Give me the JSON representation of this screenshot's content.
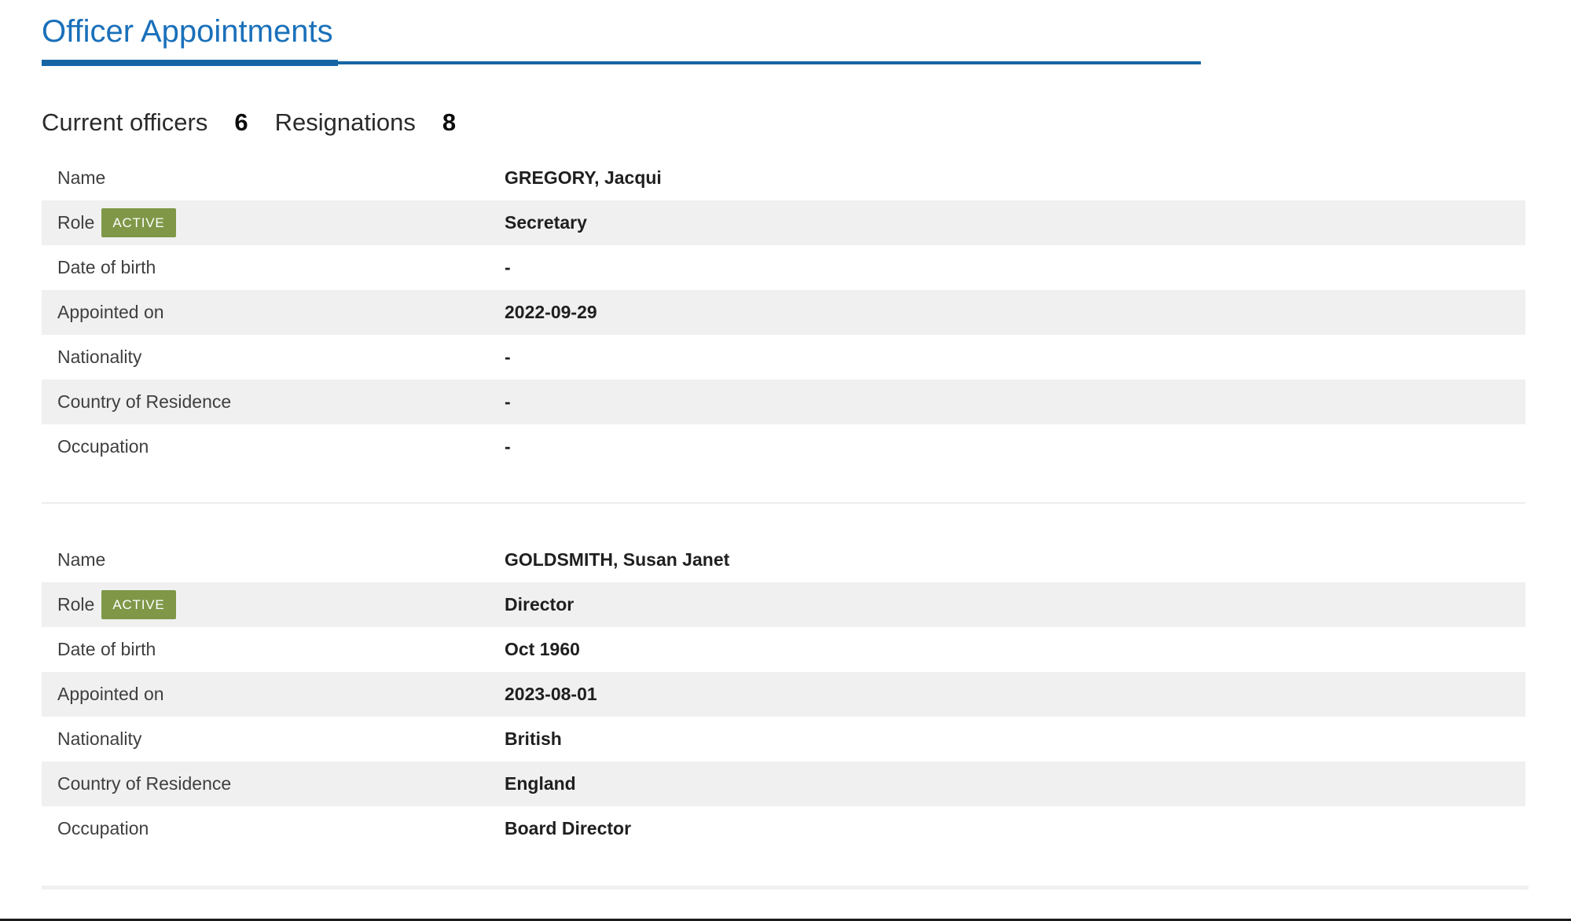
{
  "header": {
    "title": "Officer Appointments"
  },
  "summary": {
    "current_officers_label": "Current officers",
    "current_officers_count": "6",
    "resignations_label": "Resignations",
    "resignations_count": "8"
  },
  "officers": [
    {
      "rows": [
        {
          "label": "Name",
          "value": "GREGORY, Jacqui"
        },
        {
          "label": "Role",
          "badge": "ACTIVE",
          "value": "Secretary"
        },
        {
          "label": "Date of birth",
          "value": "-"
        },
        {
          "label": "Appointed on",
          "value": "2022-09-29"
        },
        {
          "label": "Nationality",
          "value": "-"
        },
        {
          "label": "Country of Residence",
          "value": "-"
        },
        {
          "label": "Occupation",
          "value": "-"
        }
      ]
    },
    {
      "rows": [
        {
          "label": "Name",
          "value": "GOLDSMITH, Susan Janet"
        },
        {
          "label": "Role",
          "badge": "ACTIVE",
          "value": "Director"
        },
        {
          "label": "Date of birth",
          "value": "Oct 1960"
        },
        {
          "label": "Appointed on",
          "value": "2023-08-01"
        },
        {
          "label": "Nationality",
          "value": "British"
        },
        {
          "label": "Country of Residence",
          "value": "England"
        },
        {
          "label": "Occupation",
          "value": "Board Director"
        }
      ]
    }
  ],
  "colors": {
    "accent-blue": "#1a70ba",
    "rule-blue": "#1565a5",
    "badge-green": "#7f9747",
    "row-stripe": "#f0f0f0",
    "label-gray": "#3f3f3f",
    "value-dark": "#1f1f1f",
    "divider-gray": "#ededed",
    "bottom-bar": "#1b1b1b"
  }
}
